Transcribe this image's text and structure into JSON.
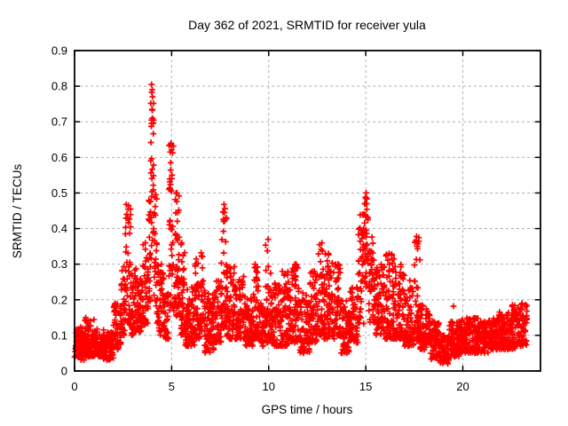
{
  "figure": {
    "background": "#ffffff",
    "border_color": "#000000",
    "grid_color": "#b0b0b0",
    "marker_color": "#ff0000"
  },
  "chart_data": {
    "type": "scatter",
    "title": "Day 362 of 2021, SRMTID for receiver yula",
    "xlabel": "GPS time / hours",
    "ylabel": "SRMTID / TECUs",
    "xlim": [
      0,
      24
    ],
    "ylim": [
      0,
      0.9
    ],
    "xtick_values": [
      0,
      5,
      10,
      15,
      20
    ],
    "xtick_labels": [
      "0",
      "5",
      "10",
      "15",
      "20"
    ],
    "ytick_values": [
      0,
      0.1,
      0.2,
      0.3,
      0.4,
      0.5,
      0.6,
      0.7,
      0.8,
      0.9
    ],
    "ytick_labels": [
      "0",
      "0.1",
      "0.2",
      "0.3",
      "0.4",
      "0.5",
      "0.6",
      "0.7",
      "0.8",
      "0.9"
    ],
    "grid": true,
    "legend_position": "none",
    "marker": {
      "shape": "plus",
      "color": "#ff0000",
      "size": 7
    },
    "series_name": "SRMTID",
    "time_span_hours": [
      0,
      23.3
    ],
    "envelope_format": [
      "t_start_hours",
      "t_end_hours",
      "y_low",
      "y_typical",
      "y_high",
      "n_points"
    ],
    "envelope": [
      [
        0.0,
        0.5,
        0.03,
        0.075,
        0.13,
        70
      ],
      [
        0.5,
        1.0,
        0.04,
        0.08,
        0.15,
        70
      ],
      [
        1.0,
        1.5,
        0.04,
        0.07,
        0.12,
        70
      ],
      [
        1.5,
        2.0,
        0.03,
        0.06,
        0.11,
        70
      ],
      [
        2.0,
        2.4,
        0.06,
        0.11,
        0.19,
        56
      ],
      [
        2.4,
        2.6,
        0.1,
        0.17,
        0.3,
        30
      ],
      [
        2.6,
        2.9,
        0.13,
        0.27,
        0.47,
        45
      ],
      [
        2.9,
        3.2,
        0.1,
        0.17,
        0.3,
        42
      ],
      [
        3.2,
        3.5,
        0.11,
        0.16,
        0.26,
        42
      ],
      [
        3.5,
        3.8,
        0.13,
        0.22,
        0.36,
        42
      ],
      [
        3.8,
        3.92,
        0.18,
        0.32,
        0.5,
        20
      ],
      [
        3.92,
        4.08,
        0.28,
        0.5,
        0.81,
        30
      ],
      [
        4.08,
        4.25,
        0.16,
        0.3,
        0.55,
        26
      ],
      [
        4.25,
        4.6,
        0.1,
        0.17,
        0.3,
        48
      ],
      [
        4.6,
        4.85,
        0.09,
        0.14,
        0.22,
        36
      ],
      [
        4.85,
        5.1,
        0.17,
        0.35,
        0.64,
        38
      ],
      [
        5.1,
        5.4,
        0.15,
        0.27,
        0.5,
        44
      ],
      [
        5.4,
        5.7,
        0.1,
        0.18,
        0.36,
        44
      ],
      [
        5.7,
        6.2,
        0.07,
        0.14,
        0.24,
        70
      ],
      [
        6.2,
        6.7,
        0.09,
        0.17,
        0.33,
        70
      ],
      [
        6.7,
        7.2,
        0.05,
        0.12,
        0.22,
        70
      ],
      [
        7.2,
        7.55,
        0.08,
        0.14,
        0.26,
        50
      ],
      [
        7.55,
        7.85,
        0.12,
        0.25,
        0.47,
        44
      ],
      [
        7.85,
        8.3,
        0.09,
        0.16,
        0.3,
        64
      ],
      [
        8.3,
        8.8,
        0.09,
        0.15,
        0.27,
        70
      ],
      [
        8.8,
        9.2,
        0.07,
        0.12,
        0.21,
        56
      ],
      [
        9.2,
        9.5,
        0.09,
        0.16,
        0.3,
        42
      ],
      [
        9.5,
        9.8,
        0.07,
        0.12,
        0.2,
        42
      ],
      [
        9.8,
        10.1,
        0.08,
        0.16,
        0.37,
        42
      ],
      [
        10.1,
        10.6,
        0.07,
        0.13,
        0.25,
        70
      ],
      [
        10.6,
        11.1,
        0.07,
        0.14,
        0.28,
        70
      ],
      [
        11.1,
        11.6,
        0.08,
        0.15,
        0.3,
        70
      ],
      [
        11.6,
        12.1,
        0.05,
        0.11,
        0.22,
        70
      ],
      [
        12.1,
        12.5,
        0.08,
        0.15,
        0.28,
        56
      ],
      [
        12.5,
        12.8,
        0.1,
        0.19,
        0.36,
        42
      ],
      [
        12.8,
        13.3,
        0.09,
        0.18,
        0.33,
        70
      ],
      [
        13.3,
        13.7,
        0.09,
        0.16,
        0.3,
        56
      ],
      [
        13.7,
        14.2,
        0.05,
        0.11,
        0.2,
        70
      ],
      [
        14.2,
        14.6,
        0.08,
        0.14,
        0.25,
        56
      ],
      [
        14.6,
        14.9,
        0.13,
        0.25,
        0.45,
        42
      ],
      [
        14.9,
        15.15,
        0.22,
        0.36,
        0.5,
        36
      ],
      [
        15.15,
        15.5,
        0.13,
        0.24,
        0.38,
        48
      ],
      [
        15.5,
        16.0,
        0.1,
        0.18,
        0.3,
        70
      ],
      [
        16.0,
        16.5,
        0.09,
        0.17,
        0.33,
        70
      ],
      [
        16.5,
        17.0,
        0.09,
        0.16,
        0.3,
        70
      ],
      [
        17.0,
        17.5,
        0.07,
        0.13,
        0.27,
        70
      ],
      [
        17.5,
        17.8,
        0.08,
        0.16,
        0.38,
        42
      ],
      [
        17.8,
        18.3,
        0.06,
        0.11,
        0.2,
        70
      ],
      [
        18.3,
        18.8,
        0.03,
        0.08,
        0.14,
        70
      ],
      [
        18.8,
        19.3,
        0.02,
        0.055,
        0.1,
        70
      ],
      [
        19.3,
        19.8,
        0.04,
        0.08,
        0.14,
        70
      ],
      [
        19.8,
        20.3,
        0.05,
        0.09,
        0.15,
        70
      ],
      [
        20.3,
        20.8,
        0.05,
        0.095,
        0.15,
        70
      ],
      [
        20.8,
        21.3,
        0.05,
        0.09,
        0.14,
        70
      ],
      [
        21.3,
        21.8,
        0.06,
        0.1,
        0.16,
        70
      ],
      [
        21.8,
        22.3,
        0.06,
        0.105,
        0.17,
        70
      ],
      [
        22.3,
        22.8,
        0.06,
        0.11,
        0.19,
        70
      ],
      [
        22.8,
        23.3,
        0.07,
        0.115,
        0.19,
        70
      ]
    ],
    "peak_points": [
      [
        3.97,
        0.805
      ],
      [
        4.0,
        0.79
      ],
      [
        4.02,
        0.77
      ],
      [
        3.99,
        0.735
      ],
      [
        4.01,
        0.71
      ],
      [
        3.96,
        0.695
      ],
      [
        4.97,
        0.64
      ],
      [
        4.93,
        0.615
      ],
      [
        4.95,
        0.585
      ],
      [
        5.27,
        0.5
      ],
      [
        5.52,
        0.36
      ],
      [
        15.02,
        0.5
      ],
      [
        14.98,
        0.487
      ],
      [
        15.05,
        0.47
      ],
      [
        2.78,
        0.465
      ],
      [
        2.74,
        0.43
      ],
      [
        7.7,
        0.468
      ],
      [
        7.72,
        0.445
      ],
      [
        7.68,
        0.42
      ],
      [
        9.97,
        0.37
      ],
      [
        9.3,
        0.3
      ],
      [
        17.62,
        0.378
      ],
      [
        17.65,
        0.35
      ],
      [
        12.62,
        0.355
      ],
      [
        13.08,
        0.33
      ],
      [
        6.52,
        0.332
      ],
      [
        16.2,
        0.33
      ],
      [
        11.35,
        0.3
      ],
      [
        10.7,
        0.28
      ],
      [
        19.52,
        0.182
      ],
      [
        22.55,
        0.185
      ],
      [
        23.05,
        0.19
      ]
    ]
  }
}
